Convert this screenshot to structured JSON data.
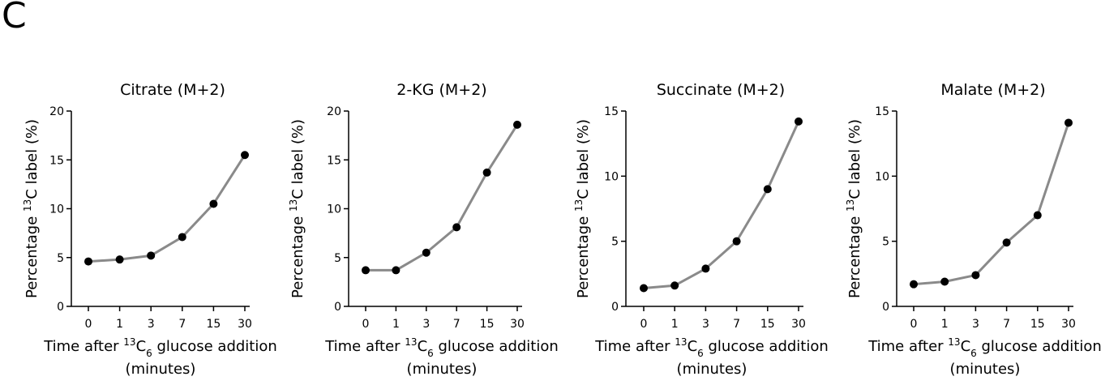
{
  "panel_letter": "C",
  "chart_data": [
    {
      "type": "line",
      "title": "Citrate (M+2)",
      "ylabel_pre": "Percentage ",
      "ylabel_sup": "13",
      "ylabel_post": "C label (%)",
      "xlabel_line1_pre": "Time after ",
      "xlabel_line1_sup": "13",
      "xlabel_line1_mid": "C",
      "xlabel_line1_sub": "6",
      "xlabel_line1_post": " glucose addition",
      "xlabel_line2": "(minutes)",
      "categories": [
        "0",
        "1",
        "3",
        "7",
        "15",
        "30"
      ],
      "values": [
        4.6,
        4.8,
        5.2,
        7.1,
        10.5,
        15.5
      ],
      "ylim": [
        0,
        20
      ],
      "yticks": [
        0,
        5,
        10,
        15,
        20
      ]
    },
    {
      "type": "line",
      "title": "2-KG (M+2)",
      "ylabel_pre": "Percentage ",
      "ylabel_sup": "13",
      "ylabel_post": "C label (%)",
      "xlabel_line1_pre": "Time after ",
      "xlabel_line1_sup": "13",
      "xlabel_line1_mid": "C",
      "xlabel_line1_sub": "6",
      "xlabel_line1_post": " glucose addition",
      "xlabel_line2": "(minutes)",
      "categories": [
        "0",
        "1",
        "3",
        "7",
        "15",
        "30"
      ],
      "values": [
        3.7,
        3.7,
        5.5,
        8.1,
        13.7,
        18.6
      ],
      "ylim": [
        0,
        20
      ],
      "yticks": [
        0,
        5,
        10,
        15,
        20
      ]
    },
    {
      "type": "line",
      "title": "Succinate (M+2)",
      "ylabel_pre": "Percentage ",
      "ylabel_sup": "13",
      "ylabel_post": "C label (%)",
      "xlabel_line1_pre": "Time after ",
      "xlabel_line1_sup": "13",
      "xlabel_line1_mid": "C",
      "xlabel_line1_sub": "6",
      "xlabel_line1_post": " glucose addition",
      "xlabel_line2": "(minutes)",
      "categories": [
        "0",
        "1",
        "3",
        "7",
        "15",
        "30"
      ],
      "values": [
        1.4,
        1.6,
        2.9,
        5.0,
        9.0,
        14.2
      ],
      "ylim": [
        0,
        15
      ],
      "yticks": [
        0,
        5,
        10,
        15
      ]
    },
    {
      "type": "line",
      "title": "Malate (M+2)",
      "ylabel_pre": "Percentage ",
      "ylabel_sup": "13",
      "ylabel_post": "C label (%)",
      "xlabel_line1_pre": "Time after ",
      "xlabel_line1_sup": "13",
      "xlabel_line1_mid": "C",
      "xlabel_line1_sub": "6",
      "xlabel_line1_post": " glucose addition",
      "xlabel_line2": "(minutes)",
      "categories": [
        "0",
        "1",
        "3",
        "7",
        "15",
        "30"
      ],
      "values": [
        1.7,
        1.9,
        2.4,
        4.9,
        7.0,
        14.1
      ],
      "ylim": [
        0,
        15
      ],
      "yticks": [
        0,
        5,
        10,
        15
      ]
    }
  ]
}
